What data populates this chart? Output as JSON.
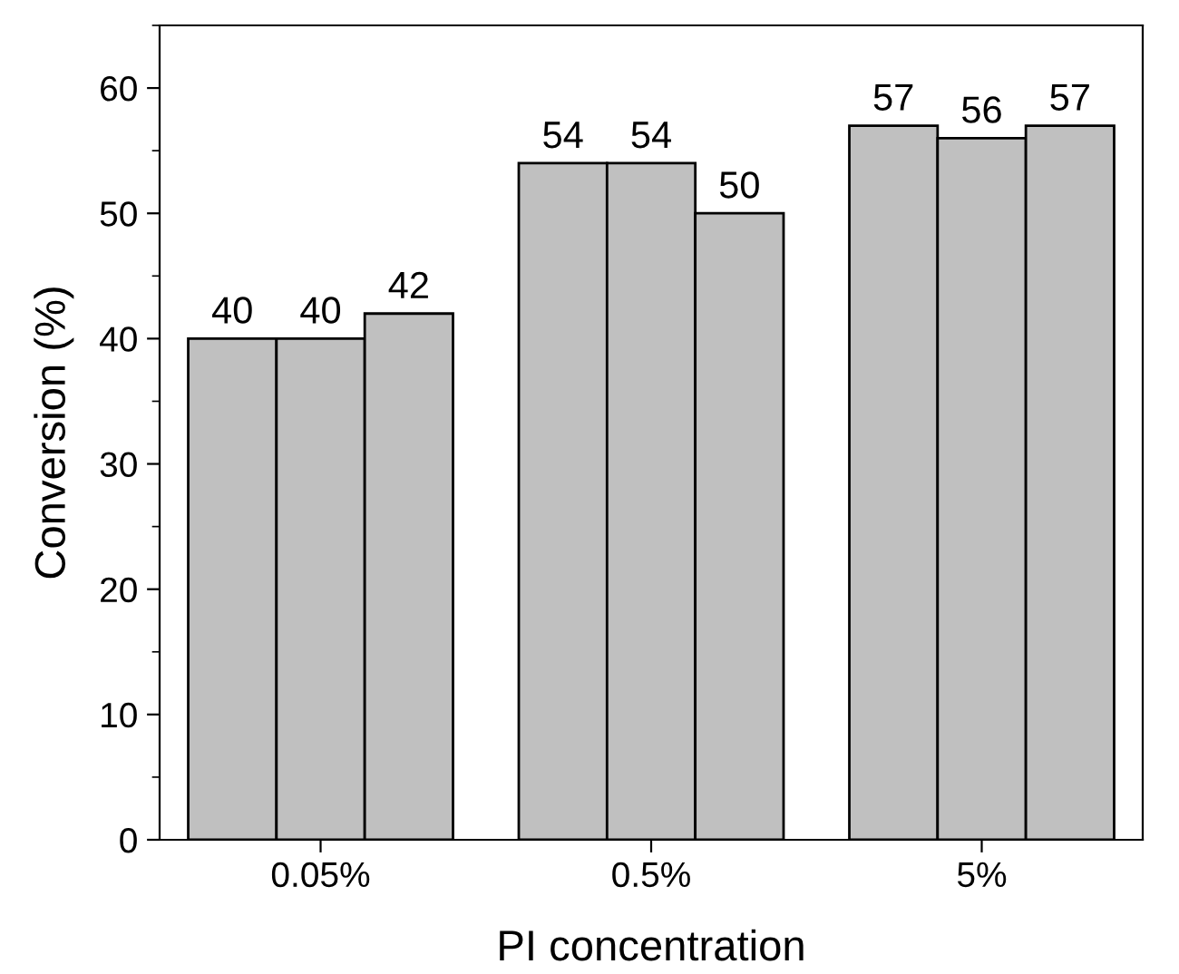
{
  "chart_data": {
    "type": "bar",
    "xlabel": "PI concentration",
    "ylabel": "Conversion (%)",
    "categories": [
      "0.05%",
      "0.5%",
      "5%"
    ],
    "series": [
      {
        "color": "#c0c0c0",
        "values": [
          40,
          54,
          57
        ]
      },
      {
        "color": "#c0c0c0",
        "values": [
          40,
          54,
          56
        ]
      },
      {
        "color": "#c0c0c0",
        "values": [
          42,
          50,
          57
        ]
      }
    ],
    "ylim": [
      0,
      65
    ],
    "yticks": [
      0,
      {
        "value": 5,
        "label": null
      },
      10,
      {
        "value": 15,
        "label": null
      },
      20,
      {
        "value": 25,
        "label": null
      },
      30,
      {
        "value": 35,
        "label": null
      },
      40,
      {
        "value": 45,
        "label": null
      },
      50,
      {
        "value": 55,
        "label": null
      },
      60,
      {
        "value": 65,
        "label": null
      }
    ],
    "data_labels": true,
    "grid": false,
    "legend": false
  }
}
